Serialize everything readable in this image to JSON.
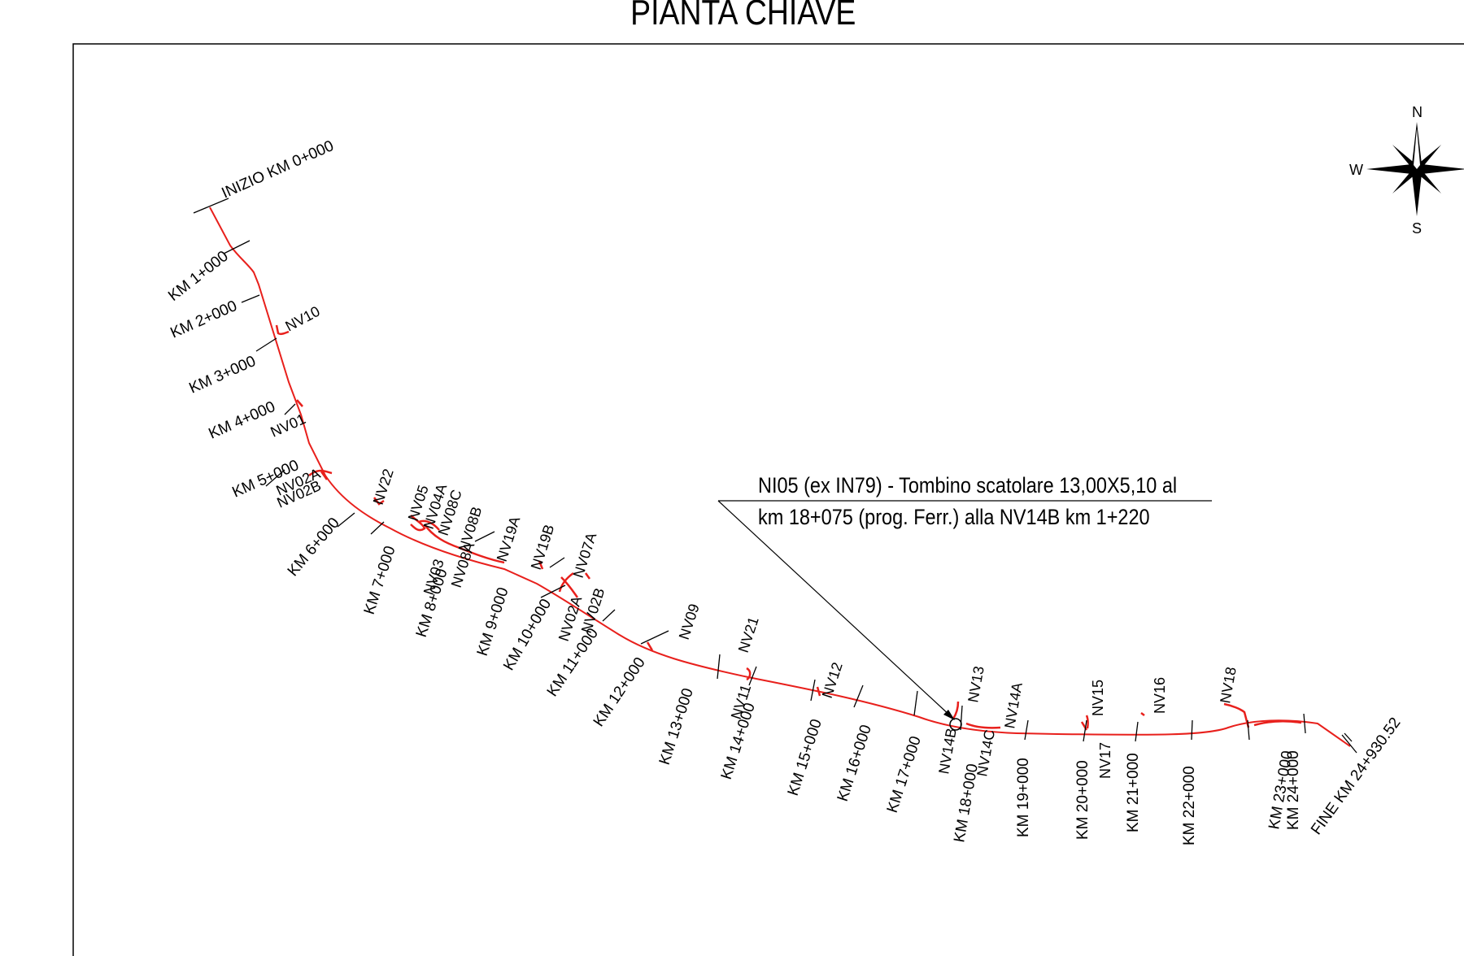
{
  "title": "PIANTA CHIAVE",
  "colors": {
    "route": "#e8201c",
    "ink": "#000000",
    "background": "#ffffff"
  },
  "compass": {
    "n": "N",
    "s": "S",
    "w": "W"
  },
  "callout": {
    "line1": "NI05 (ex IN79) - Tombino scatolare 13,00X5,10 al",
    "line2": "km 18+075 (prog. Ferr.) alla NV14B km 1+220"
  },
  "km_labels": [
    "INIZIO KM 0+000",
    "KM 1+000",
    "KM 2+000",
    "KM 3+000",
    "KM 4+000",
    "KM 5+000",
    "KM 6+000",
    "KM 7+000",
    "KM 8+000",
    "KM 9+000",
    "KM 10+000",
    "KM 11+000",
    "KM 12+000",
    "KM 13+000",
    "KM 14+000",
    "KM 15+000",
    "KM 16+000",
    "KM 17+000",
    "KM 18+000",
    "KM 19+000",
    "KM 20+000",
    "KM 21+000",
    "KM 22+000",
    "KM 23+000",
    "KM 24+000",
    "FINE KM 24+930.52"
  ],
  "nv_labels": [
    "NV10",
    "NV01",
    "NV02A",
    "NV02B",
    "NV22",
    "NV05",
    "NV04A",
    "NV08C",
    "NV08B",
    "NV03",
    "NV08A",
    "NV19A",
    "NV19B",
    "NV07A",
    "NV02A",
    "NV02B",
    "NV09",
    "NV21",
    "NV11",
    "NV12",
    "NV13",
    "NV14A",
    "NV14B",
    "NV14C",
    "NV15",
    "NV17",
    "NV16",
    "NV18"
  ]
}
